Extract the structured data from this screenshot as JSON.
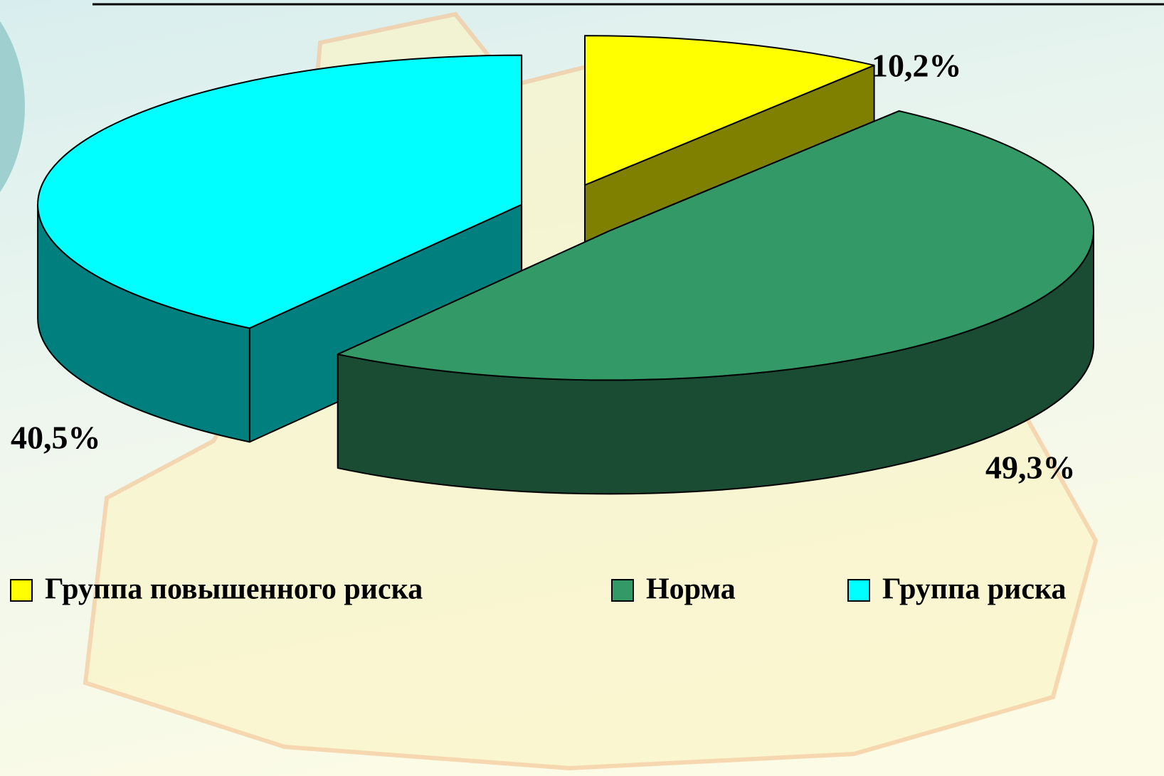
{
  "chart_data": {
    "type": "pie3d",
    "categories": [
      "Группа повышенного риска",
      "Норма",
      "Группа риска"
    ],
    "values": [
      10.2,
      49.3,
      40.5
    ],
    "value_labels": [
      "10,2%",
      "49,3%",
      "40,5%"
    ],
    "colors": [
      "#ffff00",
      "#339966",
      "#00ffff"
    ]
  }
}
